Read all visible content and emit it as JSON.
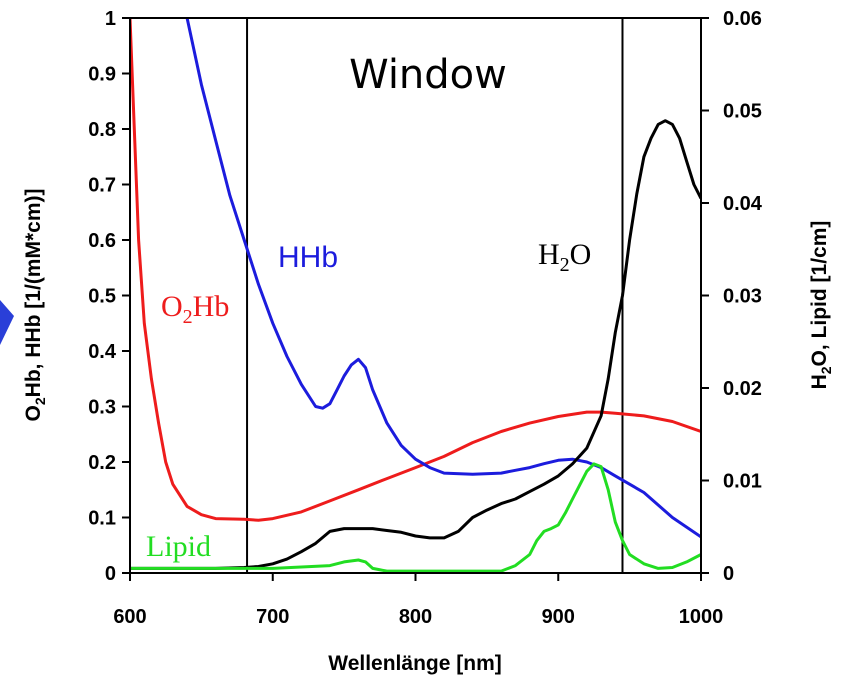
{
  "chart_data": {
    "type": "line",
    "xlabel": "Wellenlänge [nm]",
    "ylabel_left_parts": [
      "O",
      "2",
      "Hb, HHb [1/(mM*cm)]"
    ],
    "ylabel_right_parts": [
      "H",
      "2",
      "O, Lipid [1/cm]"
    ],
    "xlim": [
      600,
      1000
    ],
    "ylim_left": [
      0,
      1
    ],
    "ylim_right": [
      0,
      0.06
    ],
    "x_ticks": [
      "600",
      "700",
      "800",
      "900",
      "1000"
    ],
    "y_ticks_left": [
      "0",
      "0.1",
      "0.2",
      "0.3",
      "0.4",
      "0.5",
      "0.6",
      "0.7",
      "0.8",
      "0.9",
      "1"
    ],
    "y_ticks_right": [
      "0",
      "0.01",
      "0.02",
      "0.03",
      "0.04",
      "0.05",
      "0.06"
    ],
    "window": {
      "title": "Window",
      "x_start": 682,
      "x_end": 945
    },
    "labels": {
      "hhb": "HHb",
      "o2hb_parts": [
        "O",
        "2",
        "Hb"
      ],
      "h2o_parts": [
        "H",
        "2",
        "O"
      ],
      "lipid": "Lipid"
    },
    "colors": {
      "O2Hb": "#ee1c1c",
      "HHb": "#1c1cdd",
      "H2O": "#000000",
      "Lipid": "#22dd22"
    },
    "series": [
      {
        "key": "O2Hb",
        "axis": "left",
        "x": [
          600,
          603,
          606,
          610,
          615,
          620,
          625,
          630,
          640,
          650,
          660,
          680,
          690,
          700,
          720,
          740,
          760,
          780,
          800,
          820,
          840,
          860,
          880,
          900,
          920,
          930,
          940,
          960,
          980,
          1000
        ],
        "y": [
          1.0,
          0.8,
          0.6,
          0.45,
          0.35,
          0.27,
          0.2,
          0.16,
          0.12,
          0.105,
          0.098,
          0.097,
          0.095,
          0.098,
          0.11,
          0.13,
          0.15,
          0.17,
          0.19,
          0.21,
          0.235,
          0.255,
          0.27,
          0.282,
          0.29,
          0.29,
          0.288,
          0.283,
          0.273,
          0.255
        ]
      },
      {
        "key": "HHb",
        "axis": "left",
        "x": [
          640,
          650,
          660,
          670,
          680,
          690,
          700,
          710,
          720,
          730,
          735,
          740,
          745,
          750,
          755,
          760,
          765,
          770,
          775,
          780,
          790,
          800,
          810,
          820,
          840,
          860,
          870,
          880,
          890,
          900,
          910,
          920,
          930,
          940,
          960,
          980,
          1000
        ],
        "y": [
          1.0,
          0.88,
          0.78,
          0.68,
          0.6,
          0.52,
          0.45,
          0.39,
          0.34,
          0.3,
          0.297,
          0.305,
          0.33,
          0.355,
          0.375,
          0.385,
          0.37,
          0.33,
          0.3,
          0.27,
          0.23,
          0.205,
          0.19,
          0.18,
          0.178,
          0.18,
          0.185,
          0.19,
          0.197,
          0.203,
          0.205,
          0.2,
          0.19,
          0.175,
          0.145,
          0.1,
          0.065
        ]
      },
      {
        "key": "H2O",
        "axis": "right",
        "x": [
          600,
          620,
          640,
          660,
          680,
          690,
          700,
          710,
          720,
          730,
          740,
          750,
          760,
          770,
          780,
          790,
          800,
          810,
          820,
          830,
          840,
          850,
          860,
          870,
          880,
          890,
          900,
          910,
          920,
          930,
          935,
          940,
          945,
          950,
          955,
          960,
          965,
          970,
          975,
          980,
          985,
          990,
          995,
          1000
        ],
        "y": [
          0.0005,
          0.0005,
          0.0005,
          0.0005,
          0.0006,
          0.0007,
          0.001,
          0.0015,
          0.0023,
          0.0032,
          0.0045,
          0.0048,
          0.0048,
          0.0048,
          0.0046,
          0.0044,
          0.004,
          0.0038,
          0.0038,
          0.0045,
          0.006,
          0.0068,
          0.0075,
          0.008,
          0.0088,
          0.0096,
          0.0105,
          0.0118,
          0.0135,
          0.017,
          0.021,
          0.026,
          0.03,
          0.036,
          0.041,
          0.045,
          0.047,
          0.0485,
          0.0489,
          0.0485,
          0.047,
          0.0445,
          0.042,
          0.0405
        ]
      },
      {
        "key": "Lipid",
        "axis": "right",
        "x": [
          600,
          650,
          700,
          740,
          750,
          760,
          765,
          770,
          780,
          800,
          820,
          840,
          860,
          870,
          880,
          885,
          890,
          895,
          900,
          905,
          910,
          915,
          920,
          925,
          930,
          935,
          940,
          945,
          950,
          960,
          970,
          980,
          990,
          1000
        ],
        "y": [
          0.0005,
          0.0005,
          0.0005,
          0.0008,
          0.0012,
          0.0014,
          0.0012,
          0.0005,
          0.0002,
          0.0002,
          0.0002,
          0.0002,
          0.0002,
          0.0008,
          0.002,
          0.0035,
          0.0045,
          0.0048,
          0.0052,
          0.0065,
          0.008,
          0.0095,
          0.011,
          0.0118,
          0.0115,
          0.009,
          0.0055,
          0.0035,
          0.002,
          0.001,
          0.0005,
          0.0006,
          0.0012,
          0.002
        ]
      }
    ]
  }
}
